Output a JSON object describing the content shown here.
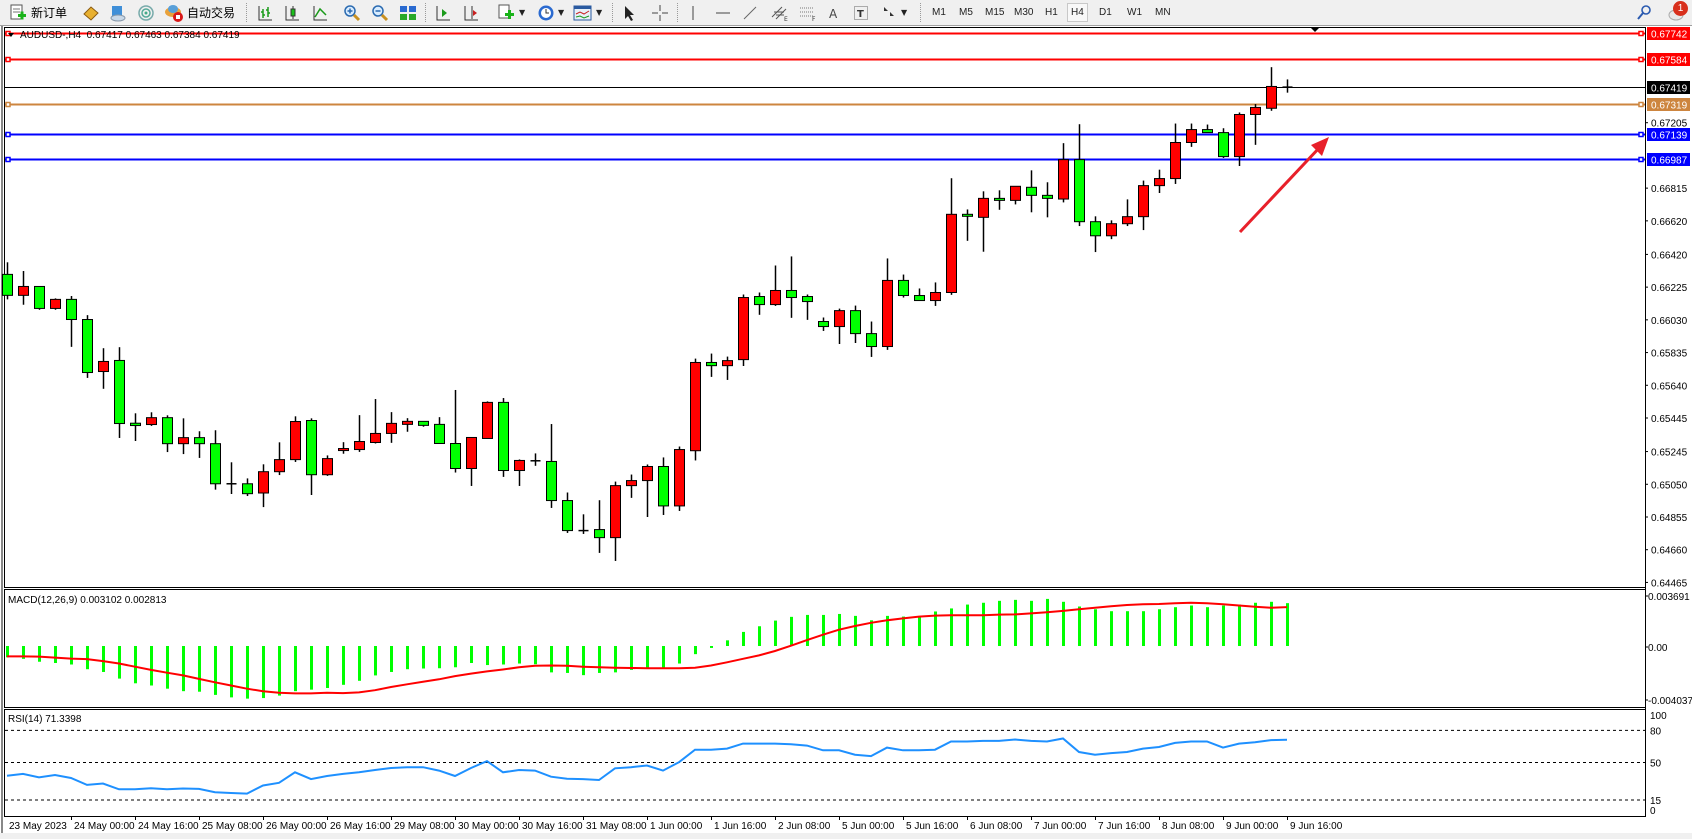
{
  "toolbar": {
    "new_order_label": "新订单",
    "auto_trading_label": "自动交易",
    "icons": [
      "new-order-icon",
      "metaeditor-icon",
      "navigator-icon",
      "signals-icon",
      "auto-trading-icon",
      "bar-chart-icon",
      "candlestick-chart-icon",
      "line-chart-icon",
      "zoom-in-icon",
      "zoom-out-icon",
      "tile-windows-icon",
      "auto-scroll-icon",
      "chart-shift-icon",
      "new-chart-icon",
      "periods-clock-icon",
      "template-icon",
      "cursor-icon",
      "crosshair-icon",
      "vertical-line-icon",
      "horizontal-line-icon",
      "trendline-icon",
      "equidistant-channel-icon",
      "fibonacci-icon",
      "text-icon",
      "text-label-icon",
      "arrows-icon"
    ],
    "timeframes": [
      "M1",
      "M5",
      "M15",
      "M30",
      "H1",
      "H4",
      "D1",
      "W1",
      "MN"
    ],
    "active_timeframe": "H4",
    "notification_count": "1"
  },
  "chart": {
    "header": "AUDUSD-,H4  0.67417 0.67463 0.67384 0.67419",
    "macd_label": "MACD(12,26,9) 0.003102 0.002813",
    "rsi_label": "RSI(14) 71.3398"
  },
  "chart_data": [
    {
      "type": "candlestick",
      "symbol": "AUDUSD-",
      "timeframe": "H4",
      "bull_color": "#ff0000",
      "bear_color": "#00ff00",
      "ylim": [
        0.64445,
        0.6778
      ],
      "y_ticks": [
        "0.67205",
        "0.66815",
        "0.66620",
        "0.66420",
        "0.66225",
        "0.66030",
        "0.65835",
        "0.65640",
        "0.65445",
        "0.65245",
        "0.65050",
        "0.64855",
        "0.64660",
        "0.64465"
      ],
      "x_tick_labels": [
        "23 May 2023",
        "24 May 00:00",
        "24 May 16:00",
        "25 May 08:00",
        "26 May 00:00",
        "26 May 16:00",
        "29 May 08:00",
        "30 May 00:00",
        "30 May 16:00",
        "31 May 08:00",
        "1 Jun 00:00",
        "1 Jun 16:00",
        "2 Jun 08:00",
        "5 Jun 00:00",
        "5 Jun 16:00",
        "6 Jun 08:00",
        "7 Jun 00:00",
        "7 Jun 16:00",
        "8 Jun 08:00",
        "9 Jun 00:00",
        "9 Jun 16:00"
      ],
      "ohlc_columns": [
        "open",
        "high",
        "low",
        "close"
      ],
      "ohlc": [
        [
          0.66301,
          0.66373,
          0.66152,
          0.66176
        ],
        [
          0.66176,
          0.66321,
          0.6612,
          0.66229
        ],
        [
          0.66229,
          0.66229,
          0.6609,
          0.66098
        ],
        [
          0.66098,
          0.66158,
          0.6609,
          0.66152
        ],
        [
          0.66152,
          0.66172,
          0.65869,
          0.66032
        ],
        [
          0.66032,
          0.66058,
          0.65684,
          0.65716
        ],
        [
          0.65722,
          0.65861,
          0.65619,
          0.65782
        ],
        [
          0.65788,
          0.65867,
          0.65326,
          0.65412
        ],
        [
          0.65414,
          0.65473,
          0.65308,
          0.654
        ],
        [
          0.65406,
          0.65479,
          0.65398,
          0.65447
        ],
        [
          0.65447,
          0.65461,
          0.65242,
          0.65292
        ],
        [
          0.65292,
          0.65443,
          0.6523,
          0.65328
        ],
        [
          0.65328,
          0.65366,
          0.65207,
          0.65292
        ],
        [
          0.65292,
          0.65372,
          0.65018,
          0.65053
        ],
        [
          0.65053,
          0.65181,
          0.64992,
          0.65053
        ],
        [
          0.65053,
          0.65085,
          0.6498,
          0.64994
        ],
        [
          0.64998,
          0.65169,
          0.64914,
          0.65125
        ],
        [
          0.65125,
          0.653,
          0.65105,
          0.65197
        ],
        [
          0.65197,
          0.65455,
          0.65183,
          0.65424
        ],
        [
          0.6543,
          0.65443,
          0.64986,
          0.65107
        ],
        [
          0.65107,
          0.65222,
          0.651,
          0.65203
        ],
        [
          0.65251,
          0.65301,
          0.65232,
          0.65263
        ],
        [
          0.65257,
          0.65462,
          0.65243,
          0.65305
        ],
        [
          0.65299,
          0.65558,
          0.65293,
          0.65353
        ],
        [
          0.65353,
          0.6548,
          0.65297,
          0.65413
        ],
        [
          0.65407,
          0.65444,
          0.65363,
          0.65425
        ],
        [
          0.65425,
          0.65425,
          0.65393,
          0.65401
        ],
        [
          0.65407,
          0.6545,
          0.65293,
          0.65293
        ],
        [
          0.65293,
          0.65612,
          0.6512,
          0.65144
        ],
        [
          0.65144,
          0.65329,
          0.6504,
          0.65329
        ],
        [
          0.65323,
          0.65544,
          0.65323,
          0.65538
        ],
        [
          0.65538,
          0.65564,
          0.65094,
          0.65132
        ],
        [
          0.65132,
          0.65198,
          0.6504,
          0.65192
        ],
        [
          0.6519,
          0.65234,
          0.6516,
          0.6519
        ],
        [
          0.65186,
          0.65409,
          0.64909,
          0.64953
        ],
        [
          0.64953,
          0.65001,
          0.6476,
          0.64774
        ],
        [
          0.64774,
          0.64871,
          0.64754,
          0.64774
        ],
        [
          0.6478,
          0.64955,
          0.64641,
          0.64732
        ],
        [
          0.64732,
          0.65066,
          0.64593,
          0.65042
        ],
        [
          0.65042,
          0.65108,
          0.64969,
          0.65072
        ],
        [
          0.65072,
          0.65168,
          0.64855,
          0.65156
        ],
        [
          0.65156,
          0.6521,
          0.64867,
          0.64921
        ],
        [
          0.64921,
          0.65275,
          0.64891,
          0.65257
        ],
        [
          0.6525,
          0.65799,
          0.65192,
          0.65776
        ],
        [
          0.65776,
          0.65829,
          0.6569,
          0.65757
        ],
        [
          0.65757,
          0.65811,
          0.65672,
          0.65787
        ],
        [
          0.65793,
          0.66181,
          0.65755,
          0.66163
        ],
        [
          0.66169,
          0.66193,
          0.6606,
          0.66121
        ],
        [
          0.66121,
          0.66354,
          0.66113,
          0.66205
        ],
        [
          0.66205,
          0.66408,
          0.66042,
          0.66163
        ],
        [
          0.66169,
          0.66181,
          0.6603,
          0.66139
        ],
        [
          0.6602,
          0.66044,
          0.65964,
          0.6599
        ],
        [
          0.6599,
          0.66097,
          0.65886,
          0.66085
        ],
        [
          0.66085,
          0.66115,
          0.65892,
          0.65948
        ],
        [
          0.65948,
          0.6602,
          0.65809,
          0.65871
        ],
        [
          0.65871,
          0.66396,
          0.65851,
          0.66265
        ],
        [
          0.66265,
          0.663,
          0.66163,
          0.66175
        ],
        [
          0.66175,
          0.66217,
          0.66145,
          0.66145
        ],
        [
          0.66145,
          0.66253,
          0.66113,
          0.66193
        ],
        [
          0.66193,
          0.66874,
          0.66179,
          0.66659
        ],
        [
          0.66659,
          0.66688,
          0.66501,
          0.66647
        ],
        [
          0.66641,
          0.66796,
          0.66436,
          0.66754
        ],
        [
          0.66754,
          0.66802,
          0.66686,
          0.66742
        ],
        [
          0.66742,
          0.66826,
          0.66718,
          0.66826
        ],
        [
          0.6682,
          0.66921,
          0.66671,
          0.66772
        ],
        [
          0.66772,
          0.6685,
          0.66641,
          0.66754
        ],
        [
          0.6675,
          0.67083,
          0.6673,
          0.66985
        ],
        [
          0.66985,
          0.67196,
          0.66589,
          0.66615
        ],
        [
          0.66615,
          0.66647,
          0.66434,
          0.66531
        ],
        [
          0.66531,
          0.66623,
          0.66511,
          0.66603
        ],
        [
          0.66603,
          0.66748,
          0.66589,
          0.66645
        ],
        [
          0.66645,
          0.6686,
          0.66565,
          0.6683
        ],
        [
          0.6683,
          0.66925,
          0.66786,
          0.66872
        ],
        [
          0.66872,
          0.672,
          0.6684,
          0.67087
        ],
        [
          0.67087,
          0.672,
          0.67061,
          0.67164
        ],
        [
          0.67164,
          0.67194,
          0.67146,
          0.67146
        ],
        [
          0.67146,
          0.67172,
          0.66995,
          0.67003
        ],
        [
          0.67003,
          0.67266,
          0.66947,
          0.67254
        ],
        [
          0.67254,
          0.67316,
          0.67073,
          0.67296
        ],
        [
          0.67291,
          0.67536,
          0.67276,
          0.67421
        ],
        [
          0.67417,
          0.67463,
          0.67384,
          0.67419
        ]
      ],
      "horizontal_lines": [
        {
          "price": "0.67742",
          "color": "#ff0000"
        },
        {
          "price": "0.67584",
          "color": "#ff0000"
        },
        {
          "price": "0.67419",
          "color": "#000000",
          "bid": true
        },
        {
          "price": "0.67319",
          "color": "#cd853f"
        },
        {
          "price": "0.67139",
          "color": "#0000ff"
        },
        {
          "price": "0.66987",
          "color": "#0000ff"
        }
      ],
      "annotation": {
        "type": "arrow",
        "color": "#e8202a",
        "direction": "up-right"
      }
    },
    {
      "type": "bar+line",
      "indicator": "MACD(12,26,9)",
      "y_ticks": [
        "0.003691",
        "0.00",
        "-0.004037"
      ],
      "histogram_color": "#00ff00",
      "signal_color": "#ff0000",
      "histogram": [
        -0.00082,
        -0.00093,
        -0.00114,
        -0.00123,
        -0.00134,
        -0.00168,
        -0.00188,
        -0.00236,
        -0.0027,
        -0.00286,
        -0.00309,
        -0.00327,
        -0.00331,
        -0.00354,
        -0.00372,
        -0.00381,
        -0.00377,
        -0.00359,
        -0.00327,
        -0.00316,
        -0.00304,
        -0.00281,
        -0.00252,
        -0.00213,
        -0.00188,
        -0.00168,
        -0.00163,
        -0.00161,
        -0.00154,
        -0.00123,
        -0.00138,
        -0.00134,
        -0.00127,
        -0.00132,
        -0.00191,
        -0.00195,
        -0.00211,
        -0.00195,
        -0.00191,
        -0.00173,
        -0.00163,
        -0.00159,
        -0.00127,
        -0.00059,
        -0.00014,
        0.00041,
        0.00102,
        0.00143,
        0.00184,
        0.00211,
        0.00225,
        0.00225,
        0.00232,
        0.00218,
        0.00186,
        0.00218,
        0.00213,
        0.00213,
        0.0025,
        0.00272,
        0.003,
        0.00313,
        0.00327,
        0.00334,
        0.00327,
        0.00341,
        0.0032,
        0.00286,
        0.00266,
        0.00252,
        0.00252,
        0.00252,
        0.00266,
        0.00281,
        0.00293,
        0.00281,
        0.00293,
        0.003,
        0.00313,
        0.0032,
        0.003102
      ],
      "signal": [
        -0.00075,
        -0.00075,
        -0.00077,
        -0.00084,
        -0.00091,
        -0.00095,
        -0.00109,
        -0.00127,
        -0.0015,
        -0.00173,
        -0.00193,
        -0.00213,
        -0.00238,
        -0.00263,
        -0.00286,
        -0.00309,
        -0.00327,
        -0.00338,
        -0.00343,
        -0.00343,
        -0.00338,
        -0.00341,
        -0.00336,
        -0.0032,
        -0.00297,
        -0.00277,
        -0.00259,
        -0.00241,
        -0.00218,
        -0.002,
        -0.00184,
        -0.0017,
        -0.00154,
        -0.00143,
        -0.00141,
        -0.00143,
        -0.0015,
        -0.00154,
        -0.00157,
        -0.00159,
        -0.00161,
        -0.00161,
        -0.00161,
        -0.00157,
        -0.00141,
        -0.00118,
        -0.00093,
        -0.00068,
        -0.00036,
        2e-05,
        0.00043,
        0.00082,
        0.00118,
        0.00145,
        0.00168,
        0.00186,
        0.002,
        0.00213,
        0.0022,
        0.00222,
        0.00222,
        0.00222,
        0.00227,
        0.00229,
        0.00236,
        0.00245,
        0.00254,
        0.00266,
        0.00277,
        0.00288,
        0.00297,
        0.00302,
        0.00304,
        0.00309,
        0.00313,
        0.00309,
        0.00302,
        0.00293,
        0.00284,
        0.00277,
        0.002813
      ]
    },
    {
      "type": "line",
      "indicator": "RSI(14)",
      "ylim": [
        0,
        100
      ],
      "levels": [
        80,
        50,
        15
      ],
      "y_ticks": [
        "100",
        "80",
        "50",
        "15",
        "0"
      ],
      "color": "#1e90ff",
      "values": [
        37.7,
        39.3,
        36.1,
        38.3,
        35.5,
        29.1,
        30.4,
        25.0,
        25.0,
        26.0,
        25.0,
        25.7,
        25.3,
        22.2,
        21.5,
        20.9,
        28.5,
        31.0,
        40.8,
        34.5,
        37.4,
        39.3,
        40.8,
        43.0,
        44.9,
        45.6,
        45.6,
        42.4,
        37.4,
        44.9,
        51.3,
        40.8,
        43.0,
        42.4,
        36.7,
        34.8,
        34.5,
        33.6,
        44.6,
        45.6,
        47.2,
        42.4,
        50.3,
        62.0,
        62.0,
        63.0,
        67.7,
        67.7,
        67.7,
        67.1,
        65.8,
        61.4,
        61.4,
        57.3,
        56.0,
        63.9,
        61.4,
        61.4,
        62.0,
        69.6,
        69.6,
        70.2,
        70.2,
        71.5,
        70.2,
        69.6,
        72.4,
        59.8,
        57.3,
        58.8,
        59.8,
        63.0,
        64.5,
        68.3,
        69.6,
        69.6,
        63.9,
        67.7,
        69.0,
        70.9,
        71.3398
      ]
    }
  ]
}
